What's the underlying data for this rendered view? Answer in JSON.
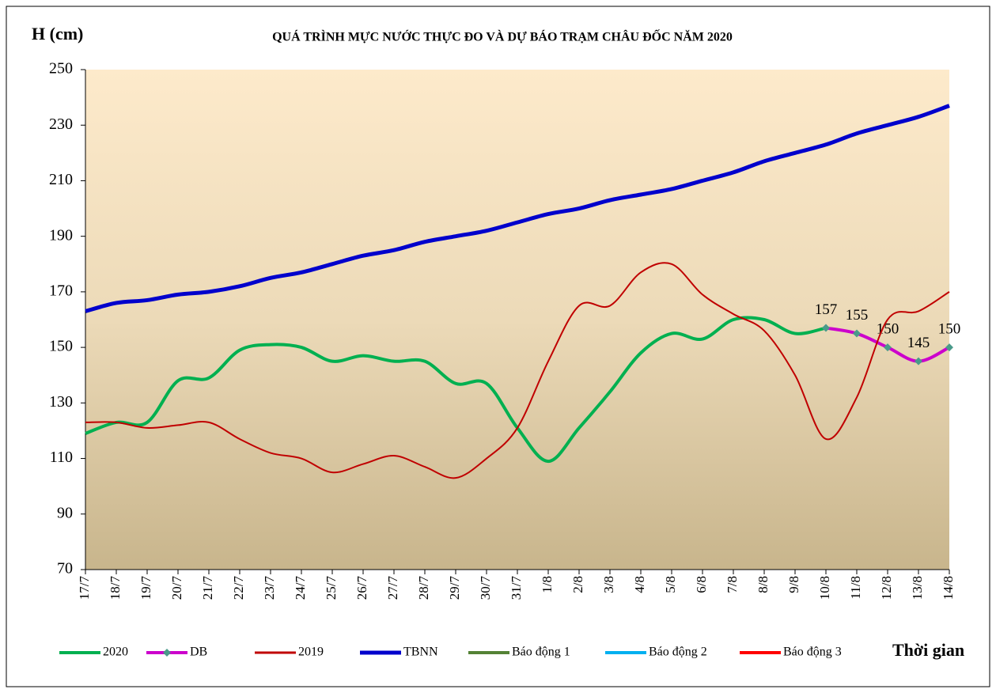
{
  "chart_data": {
    "type": "line",
    "title": "QUÁ TRÌNH MỰC NƯỚC THỰC ĐO VÀ DỰ BÁO TRẠM CHÂU ĐỐC NĂM  2020",
    "y_label": "H (cm)",
    "x_label": "Thời gian",
    "categories": [
      "17/7",
      "18/7",
      "19/7",
      "20/7",
      "21/7",
      "22/7",
      "23/7",
      "24/7",
      "25/7",
      "26/7",
      "27/7",
      "28/7",
      "29/7",
      "30/7",
      "31/7",
      "1/8",
      "2/8",
      "3/8",
      "4/8",
      "5/8",
      "6/8",
      "7/8",
      "8/8",
      "9/8",
      "10/8",
      "11/8",
      "12/8",
      "13/8",
      "14/8"
    ],
    "ylim": [
      70,
      250
    ],
    "yticks": [
      70,
      90,
      110,
      130,
      150,
      170,
      190,
      210,
      230,
      250
    ],
    "series": [
      {
        "name": "2020",
        "color": "#00b050",
        "values": [
          119,
          123,
          123,
          138,
          139,
          149,
          151,
          150,
          145,
          147,
          145,
          145,
          137,
          137,
          121,
          109,
          121,
          134,
          148,
          155,
          153,
          160,
          160,
          155,
          157,
          null,
          null,
          null,
          null
        ]
      },
      {
        "name": "DB",
        "color": "#cc00cc",
        "markers": true,
        "data_labels": true,
        "values": [
          null,
          null,
          null,
          null,
          null,
          null,
          null,
          null,
          null,
          null,
          null,
          null,
          null,
          null,
          null,
          null,
          null,
          null,
          null,
          null,
          null,
          null,
          null,
          null,
          157,
          155,
          150,
          145,
          150
        ]
      },
      {
        "name": "2019",
        "color": "#c00000",
        "values": [
          123,
          123,
          121,
          122,
          123,
          117,
          112,
          110,
          105,
          108,
          111,
          107,
          103,
          110,
          121,
          145,
          165,
          165,
          177,
          180,
          169,
          162,
          156,
          140,
          117,
          132,
          160,
          163,
          170
        ]
      },
      {
        "name": "TBNN",
        "color": "#0000cc",
        "values": [
          163,
          166,
          167,
          169,
          170,
          172,
          175,
          177,
          180,
          183,
          185,
          188,
          190,
          192,
          195,
          198,
          200,
          203,
          205,
          207,
          210,
          213,
          217,
          220,
          223,
          227,
          230,
          233,
          237
        ]
      },
      {
        "name": "Báo động 1",
        "color": "#548235",
        "values": [
          null,
          null,
          null,
          null,
          null,
          null,
          null,
          null,
          null,
          null,
          null,
          null,
          null,
          null,
          null,
          null,
          null,
          null,
          null,
          null,
          null,
          null,
          null,
          null,
          null,
          null,
          null,
          null,
          null
        ]
      },
      {
        "name": "Báo động 2",
        "color": "#00b0f0",
        "values": [
          null,
          null,
          null,
          null,
          null,
          null,
          null,
          null,
          null,
          null,
          null,
          null,
          null,
          null,
          null,
          null,
          null,
          null,
          null,
          null,
          null,
          null,
          null,
          null,
          null,
          null,
          null,
          null,
          null
        ]
      },
      {
        "name": "Báo động 3",
        "color": "#ff0000",
        "values": [
          null,
          null,
          null,
          null,
          null,
          null,
          null,
          null,
          null,
          null,
          null,
          null,
          null,
          null,
          null,
          null,
          null,
          null,
          null,
          null,
          null,
          null,
          null,
          null,
          null,
          null,
          null,
          null,
          null
        ]
      }
    ]
  }
}
